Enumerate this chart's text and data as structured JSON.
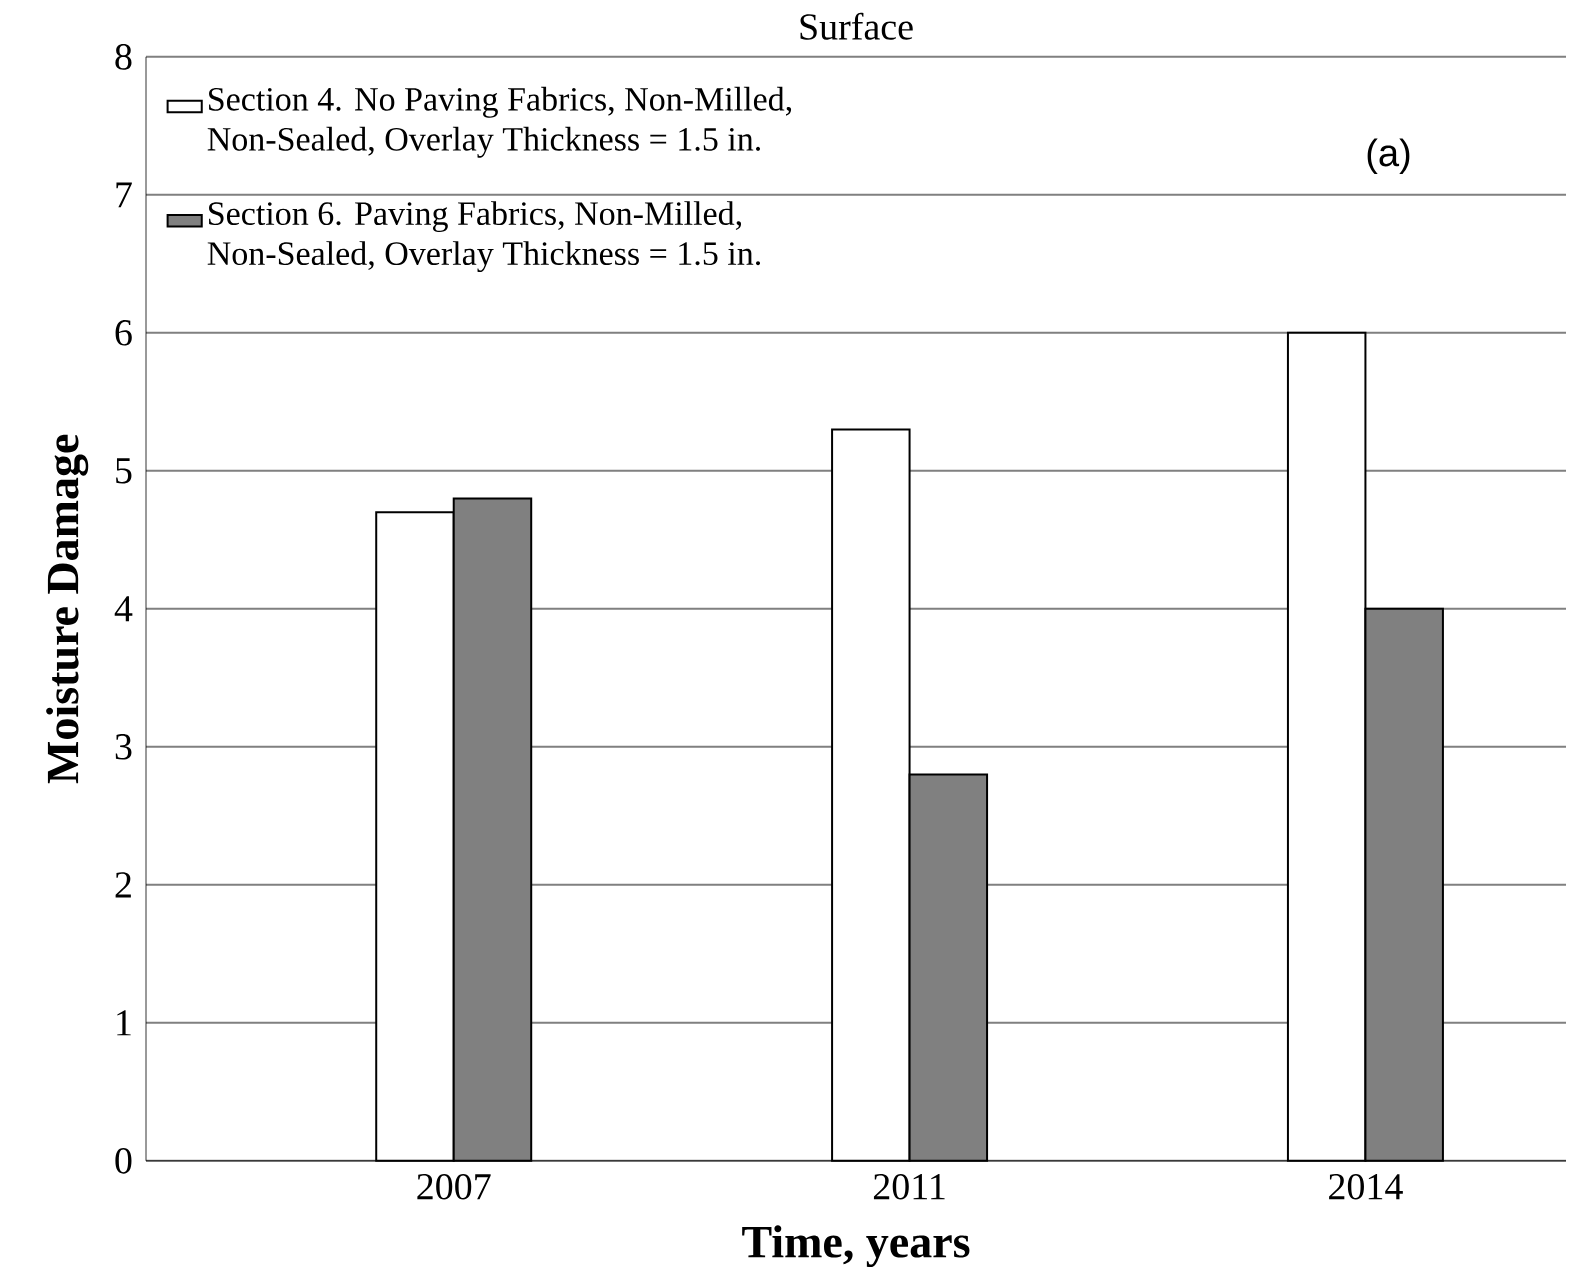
{
  "chart_data": {
    "type": "bar",
    "title": "Surface",
    "xlabel": "Time, years",
    "ylabel": "Moisture Damage",
    "categories": [
      "2007",
      "2011",
      "2014"
    ],
    "series": [
      {
        "name": "Section 4. No Paving Fabrics, Non-Milled, Non-Sealed, Overlay Thickness = 1.5 in.",
        "color": "#ffffff",
        "values": [
          4.7,
          5.3,
          6.0
        ]
      },
      {
        "name": "Section 6. Paving Fabrics, Non-Milled, Non-Sealed, Overlay Thickness = 1.5 in.",
        "color": "#808080",
        "values": [
          4.8,
          2.8,
          4.0
        ]
      }
    ],
    "ylim": [
      0,
      8
    ],
    "yticks": [
      0,
      1,
      2,
      3,
      4,
      5,
      6,
      7,
      8
    ],
    "grid": "y",
    "legend": "top left",
    "annotations": [
      "(a)"
    ]
  }
}
